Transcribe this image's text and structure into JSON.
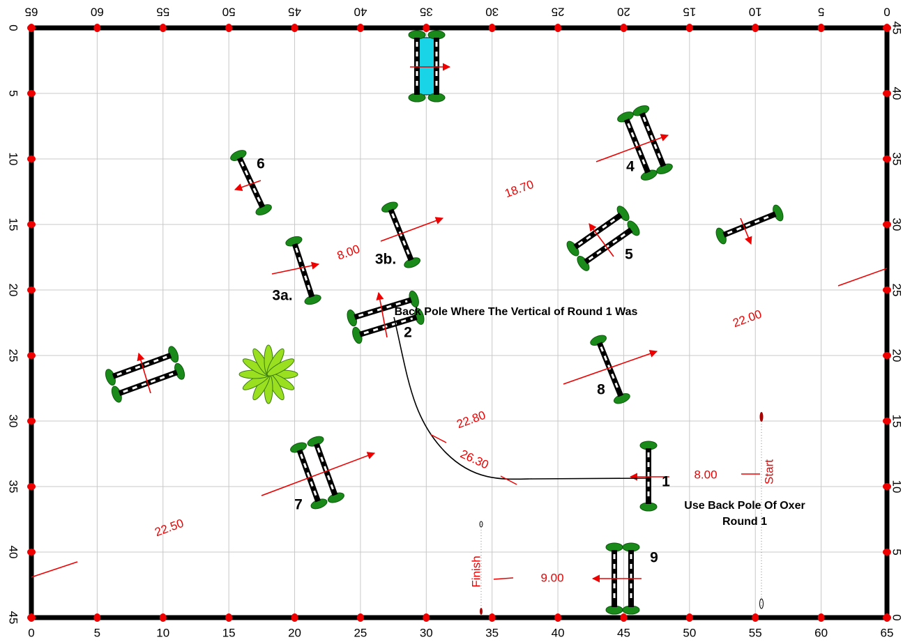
{
  "ring": {
    "x_ticks": [
      0,
      5,
      10,
      15,
      20,
      25,
      30,
      35,
      40,
      45,
      50,
      55,
      60,
      65
    ],
    "y_ticks": [
      0,
      5,
      10,
      15,
      20,
      25,
      30,
      35,
      40,
      45
    ]
  },
  "fences": [
    "1",
    "2",
    "3a.",
    "3b.",
    "4",
    "5",
    "6",
    "7",
    "8",
    "9"
  ],
  "notes": [
    "Back Pole Where The Vertical of Round 1 Was",
    "Use Back Pole Of Oxer",
    "Round 1"
  ],
  "distances": [
    "18.70",
    "8.00",
    "22.00",
    "22.80",
    "26.30",
    "8.00",
    "22.50",
    "9.00"
  ],
  "start": "Start",
  "finish": "Finish"
}
